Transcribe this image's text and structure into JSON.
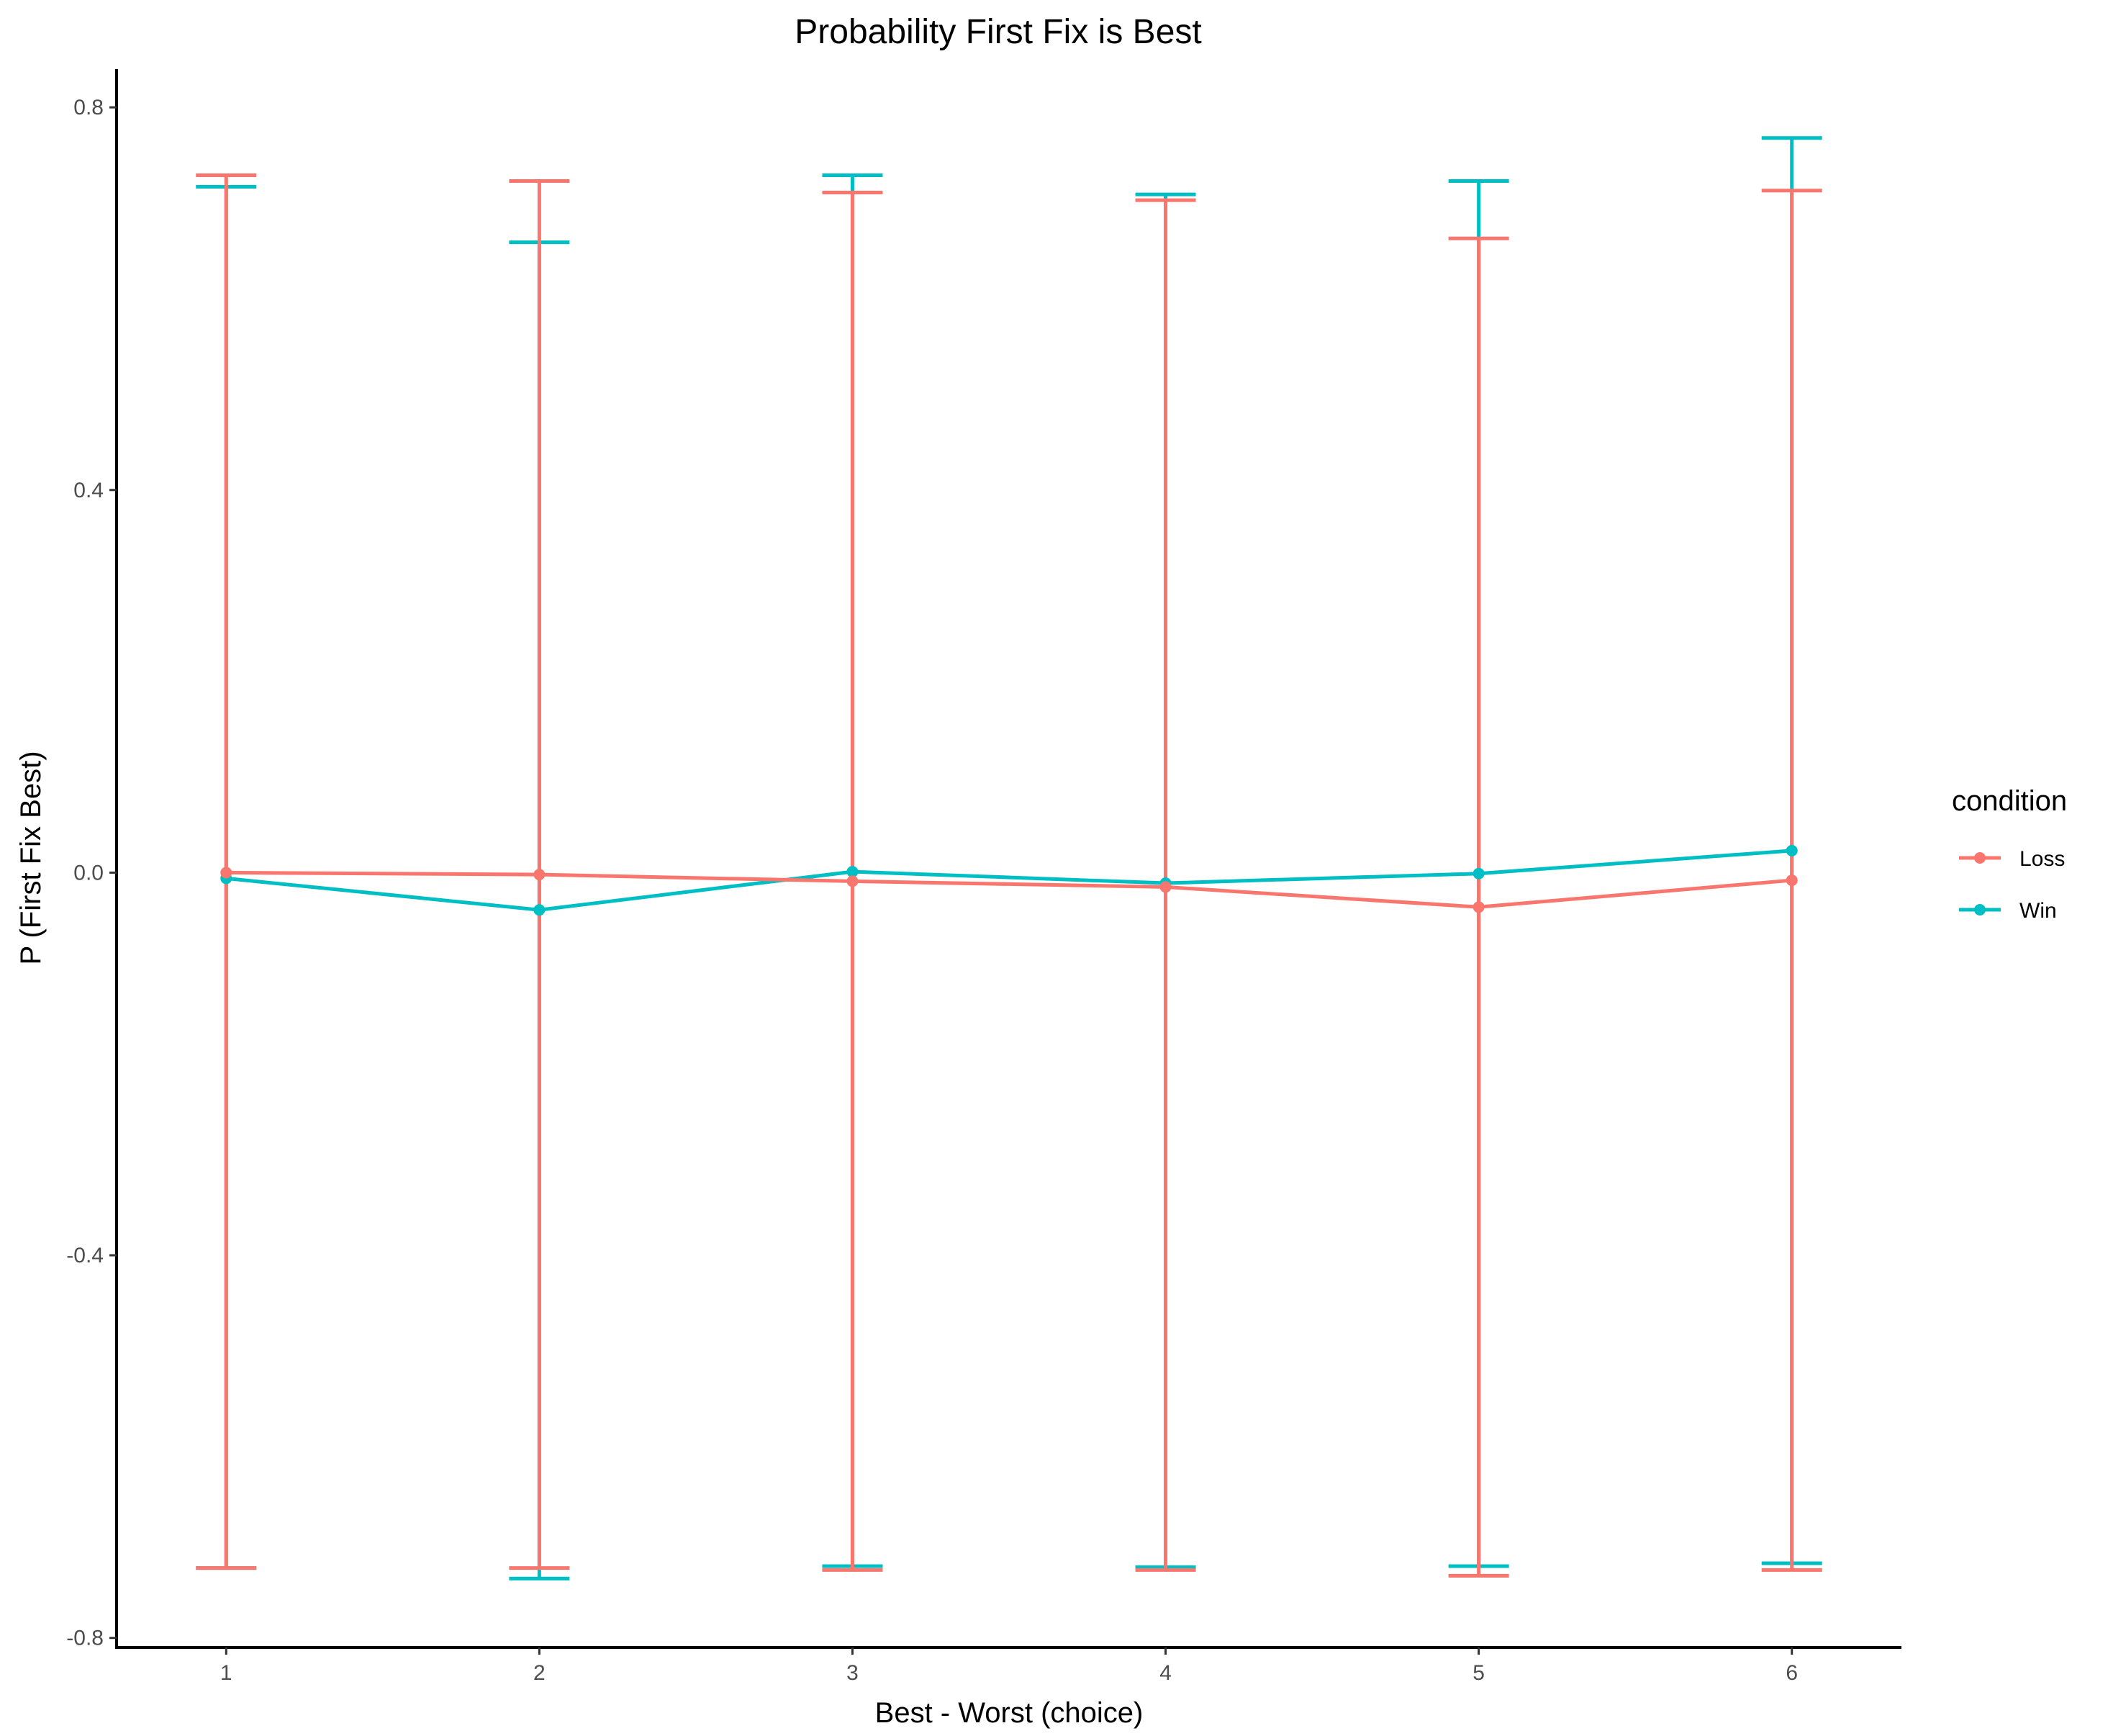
{
  "chart_data": {
    "type": "line",
    "title": "Probability First Fix is Best",
    "xlabel": "Best - Worst (choice)",
    "ylabel": "P (First Fix Best)",
    "x": [
      1,
      2,
      3,
      4,
      5,
      6
    ],
    "x_tick_labels": [
      "1",
      "2",
      "3",
      "4",
      "5",
      "6"
    ],
    "y_ticks": [
      -0.8,
      -0.4,
      0.0,
      0.4,
      0.8
    ],
    "y_tick_labels": [
      "-0.8",
      "-0.4",
      "0.0",
      "0.4",
      "0.8"
    ],
    "xlim": [
      0.65,
      6.35
    ],
    "ylim": [
      -0.81,
      0.84
    ],
    "grid": false,
    "legend": {
      "title": "condition",
      "position": "right"
    },
    "series": [
      {
        "name": "Loss",
        "color": "#F8766D",
        "values": [
          0.0,
          -0.002,
          -0.009,
          -0.015,
          -0.036,
          -0.008
        ],
        "error_upper": [
          0.729,
          0.723,
          0.711,
          0.703,
          0.663,
          0.713
        ],
        "error_lower": [
          -0.727,
          -0.727,
          -0.729,
          -0.729,
          -0.735,
          -0.729
        ]
      },
      {
        "name": "Win",
        "color": "#00BFC4",
        "values": [
          -0.006,
          -0.039,
          0.001,
          -0.011,
          -0.001,
          0.023
        ],
        "error_upper": [
          0.717,
          0.659,
          0.729,
          0.709,
          0.723,
          0.768
        ],
        "error_lower": [
          -0.727,
          -0.738,
          -0.725,
          -0.726,
          -0.725,
          -0.722
        ]
      }
    ]
  }
}
